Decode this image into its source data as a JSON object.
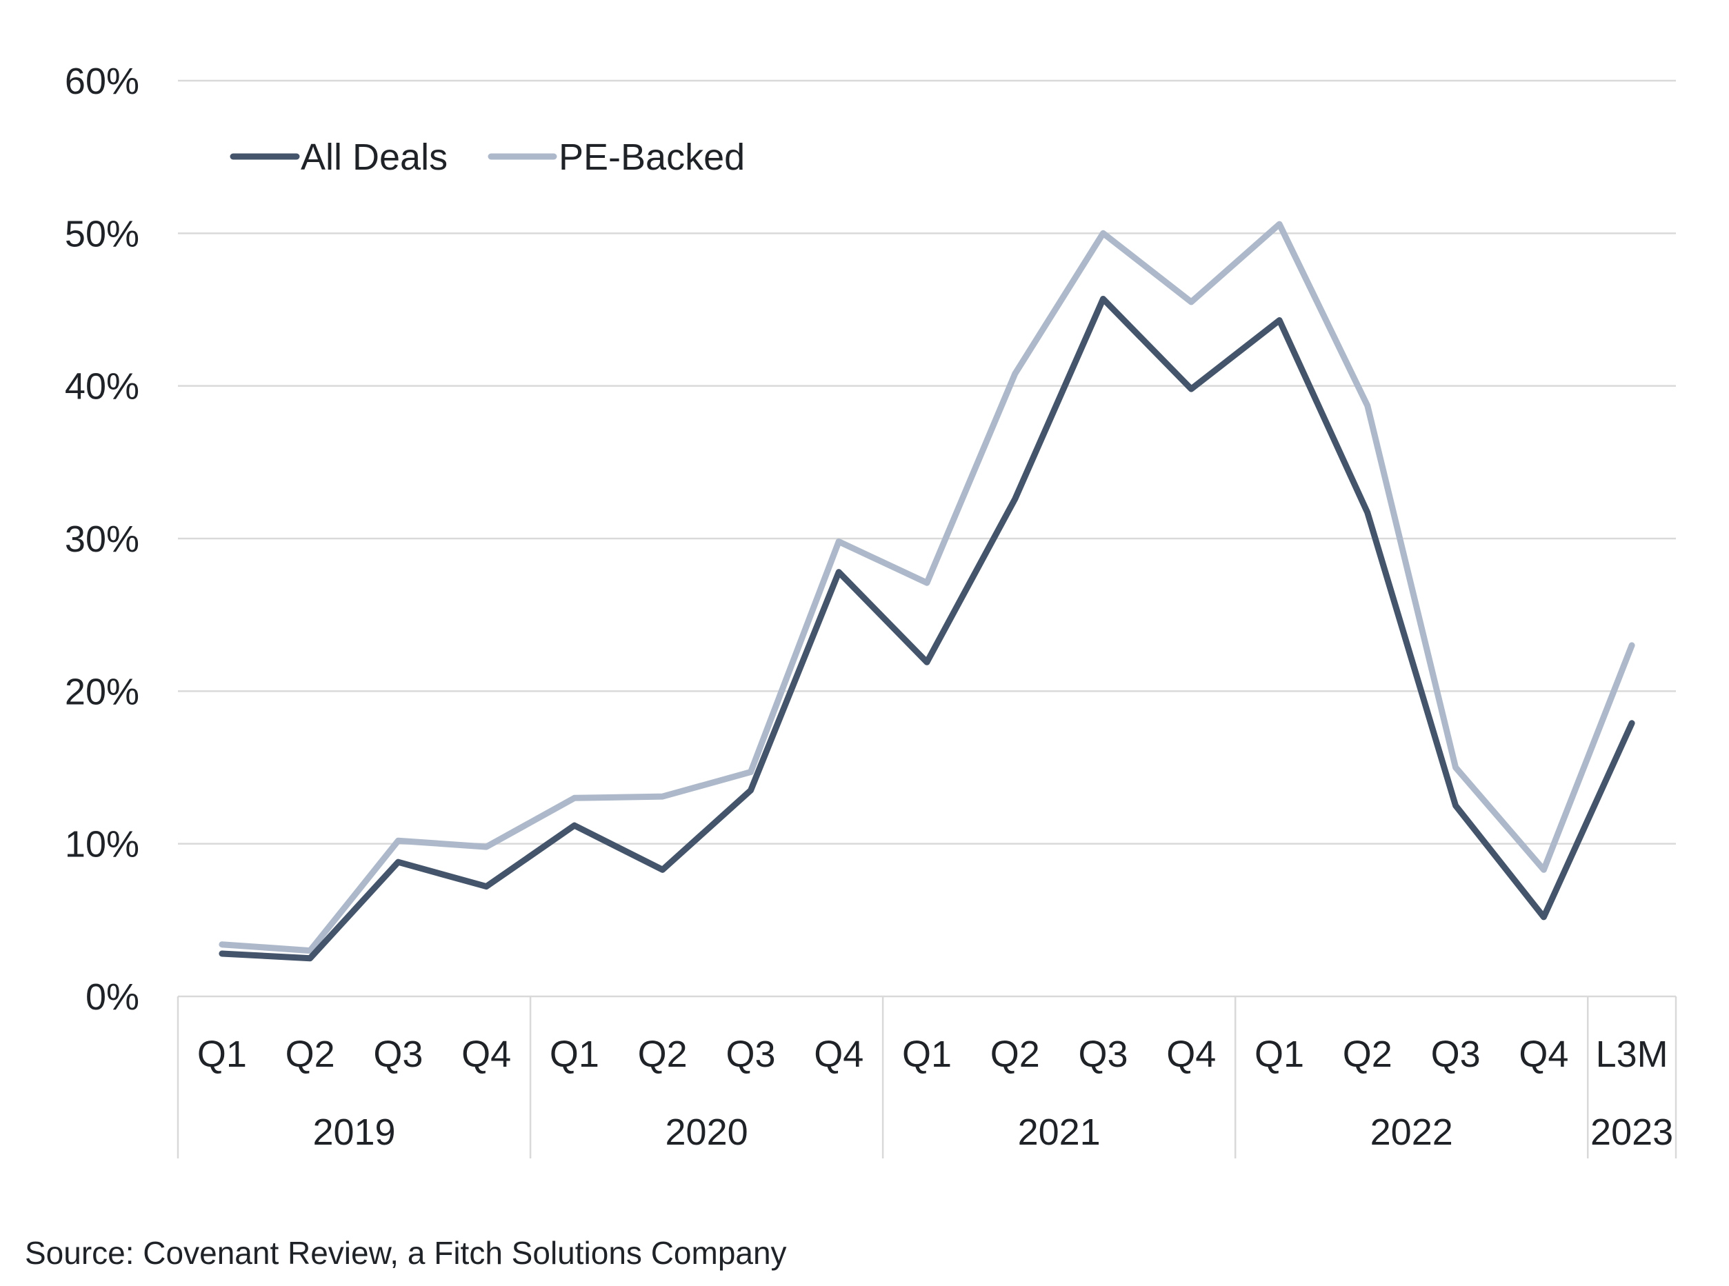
{
  "chart_data": {
    "type": "line",
    "title": "",
    "xlabel": "",
    "ylabel": "",
    "ylim": [
      0,
      60
    ],
    "y_ticks": [
      "0%",
      "10%",
      "20%",
      "30%",
      "40%",
      "50%",
      "60%"
    ],
    "y_tick_values": [
      0,
      10,
      20,
      30,
      40,
      50,
      60
    ],
    "grid": true,
    "legend_position": "top-left",
    "categories": [
      "Q1",
      "Q2",
      "Q3",
      "Q4",
      "Q1",
      "Q2",
      "Q3",
      "Q4",
      "Q1",
      "Q2",
      "Q3",
      "Q4",
      "Q1",
      "Q2",
      "Q3",
      "Q4",
      "L3M"
    ],
    "category_groups": [
      {
        "label": "2019",
        "count": 4
      },
      {
        "label": "2020",
        "count": 4
      },
      {
        "label": "2021",
        "count": 4
      },
      {
        "label": "2022",
        "count": 4
      },
      {
        "label": "2023",
        "count": 1
      }
    ],
    "series": [
      {
        "name": "All Deals",
        "color": "#44546a",
        "values": [
          2.8,
          2.5,
          8.8,
          7.2,
          11.2,
          8.3,
          13.5,
          27.8,
          21.9,
          32.6,
          45.7,
          39.8,
          44.3,
          31.7,
          12.5,
          5.2,
          17.9
        ]
      },
      {
        "name": "PE-Backed",
        "color": "#adb9ca",
        "values": [
          3.4,
          3.0,
          10.2,
          9.8,
          13.0,
          13.1,
          14.7,
          29.8,
          27.1,
          40.8,
          50.0,
          45.5,
          50.6,
          38.7,
          15.0,
          8.3,
          23.0
        ]
      }
    ]
  },
  "source_note": "Source: Covenant Review, a Fitch Solutions Company"
}
